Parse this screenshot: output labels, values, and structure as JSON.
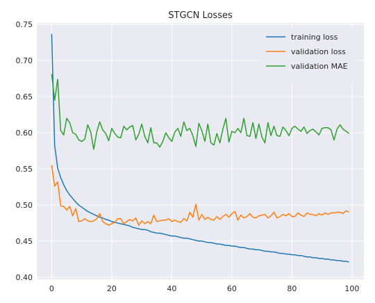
{
  "chart_data": {
    "type": "line",
    "title": "STGCN Losses",
    "xlabel": "",
    "ylabel": "",
    "xlim": [
      -4.95,
      103.95
    ],
    "ylim": [
      0.397,
      0.752
    ],
    "xticks": [
      0,
      20,
      40,
      60,
      80,
      100
    ],
    "xtick_labels": [
      "0",
      "20",
      "40",
      "60",
      "80",
      "100"
    ],
    "yticks": [
      0.4,
      0.45,
      0.5,
      0.55,
      0.6,
      0.65,
      0.7,
      0.75
    ],
    "ytick_labels": [
      "0.40",
      "0.45",
      "0.50",
      "0.55",
      "0.60",
      "0.65",
      "0.70",
      "0.75"
    ],
    "grid": true,
    "legend_position": "top-right",
    "background": "#eaeaf2",
    "series": [
      {
        "name": "training loss",
        "color": "#1f77b4",
        "values": [
          0.737,
          0.582,
          0.551,
          0.538,
          0.528,
          0.52,
          0.514,
          0.509,
          0.504,
          0.5,
          0.497,
          0.494,
          0.491,
          0.489,
          0.487,
          0.485,
          0.483,
          0.482,
          0.48,
          0.479,
          0.477,
          0.476,
          0.475,
          0.474,
          0.473,
          0.472,
          0.471,
          0.469,
          0.468,
          0.467,
          0.466,
          0.466,
          0.465,
          0.463,
          0.462,
          0.461,
          0.461,
          0.46,
          0.459,
          0.458,
          0.457,
          0.457,
          0.456,
          0.455,
          0.454,
          0.454,
          0.453,
          0.452,
          0.451,
          0.45,
          0.45,
          0.449,
          0.448,
          0.448,
          0.447,
          0.446,
          0.446,
          0.445,
          0.444,
          0.444,
          0.443,
          0.443,
          0.442,
          0.441,
          0.441,
          0.44,
          0.439,
          0.439,
          0.438,
          0.438,
          0.437,
          0.436,
          0.436,
          0.435,
          0.435,
          0.434,
          0.433,
          0.433,
          0.432,
          0.432,
          0.431,
          0.431,
          0.43,
          0.43,
          0.429,
          0.428,
          0.428,
          0.427,
          0.427,
          0.426,
          0.426,
          0.425,
          0.425,
          0.424,
          0.424,
          0.423,
          0.423,
          0.422,
          0.422,
          0.421
        ]
      },
      {
        "name": "validation loss",
        "color": "#ff7f0e",
        "values": [
          0.555,
          0.526,
          0.532,
          0.499,
          0.498,
          0.493,
          0.498,
          0.485,
          0.495,
          0.477,
          0.478,
          0.481,
          0.478,
          0.477,
          0.478,
          0.481,
          0.488,
          0.477,
          0.474,
          0.472,
          0.474,
          0.476,
          0.481,
          0.481,
          0.474,
          0.477,
          0.48,
          0.478,
          0.482,
          0.472,
          0.478,
          0.474,
          0.477,
          0.474,
          0.486,
          0.477,
          0.478,
          0.479,
          0.479,
          0.481,
          0.477,
          0.479,
          0.477,
          0.476,
          0.481,
          0.478,
          0.49,
          0.483,
          0.501,
          0.479,
          0.487,
          0.48,
          0.483,
          0.48,
          0.479,
          0.484,
          0.48,
          0.484,
          0.487,
          0.483,
          0.488,
          0.491,
          0.479,
          0.486,
          0.482,
          0.484,
          0.488,
          0.483,
          0.482,
          0.485,
          0.486,
          0.487,
          0.482,
          0.485,
          0.49,
          0.482,
          0.484,
          0.487,
          0.485,
          0.488,
          0.484,
          0.484,
          0.489,
          0.486,
          0.484,
          0.489,
          0.487,
          0.487,
          0.485,
          0.488,
          0.486,
          0.489,
          0.487,
          0.489,
          0.489,
          0.49,
          0.49,
          0.488,
          0.492,
          0.49
        ]
      },
      {
        "name": "validation MAE",
        "color": "#2ca02c",
        "values": [
          0.681,
          0.645,
          0.674,
          0.603,
          0.597,
          0.62,
          0.614,
          0.6,
          0.598,
          0.59,
          0.588,
          0.591,
          0.611,
          0.601,
          0.577,
          0.601,
          0.615,
          0.604,
          0.599,
          0.589,
          0.606,
          0.599,
          0.594,
          0.593,
          0.609,
          0.604,
          0.608,
          0.61,
          0.59,
          0.598,
          0.612,
          0.595,
          0.586,
          0.607,
          0.586,
          0.586,
          0.58,
          0.588,
          0.6,
          0.593,
          0.588,
          0.601,
          0.606,
          0.595,
          0.615,
          0.603,
          0.606,
          0.596,
          0.581,
          0.613,
          0.603,
          0.588,
          0.612,
          0.586,
          0.583,
          0.599,
          0.586,
          0.605,
          0.62,
          0.587,
          0.602,
          0.6,
          0.606,
          0.6,
          0.62,
          0.596,
          0.595,
          0.614,
          0.592,
          0.612,
          0.594,
          0.586,
          0.614,
          0.596,
          0.609,
          0.596,
          0.595,
          0.608,
          0.603,
          0.596,
          0.606,
          0.609,
          0.605,
          0.602,
          0.608,
          0.599,
          0.603,
          0.605,
          0.601,
          0.597,
          0.606,
          0.607,
          0.607,
          0.604,
          0.59,
          0.605,
          0.611,
          0.605,
          0.602,
          0.599
        ]
      }
    ]
  }
}
